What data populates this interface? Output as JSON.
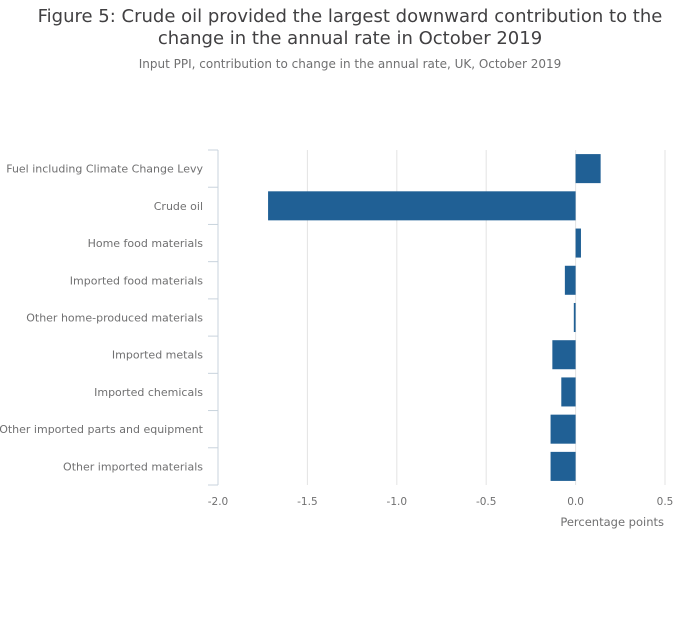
{
  "header": {
    "title_line1": "Figure 5: Crude oil provided the largest downward contribution to the",
    "title_line2": "change in the annual rate in October 2019",
    "subtitle": "Input PPI, contribution to change in the annual rate, UK, October 2019"
  },
  "colors": {
    "bar": "#206095",
    "grid": "#e3e3e3",
    "axis": "#c8d3dd"
  },
  "chart_data": {
    "type": "bar",
    "orientation": "horizontal",
    "title": "Figure 5: Crude oil provided the largest downward contribution to the change in the annual rate in October 2019",
    "subtitle": "Input PPI, contribution to change in the annual rate, UK, October 2019",
    "xlabel": "Percentage points",
    "ylabel": "",
    "xlim": [
      -2.0,
      0.5
    ],
    "x_ticks": [
      "-2.0",
      "-1.5",
      "-1.0",
      "-0.5",
      "0.0",
      "0.5"
    ],
    "x_tick_values": [
      -2.0,
      -1.5,
      -1.0,
      -0.5,
      0.0,
      0.5
    ],
    "grid": true,
    "categories": [
      "Fuel including Climate Change Levy",
      "Crude oil",
      "Home food materials",
      "Imported food materials",
      "Other home-produced materials",
      "Imported metals",
      "Imported chemicals",
      "Other imported parts and equipment",
      "Other imported materials"
    ],
    "values": [
      0.14,
      -1.72,
      0.03,
      -0.06,
      -0.01,
      -0.13,
      -0.08,
      -0.14,
      -0.14
    ]
  }
}
